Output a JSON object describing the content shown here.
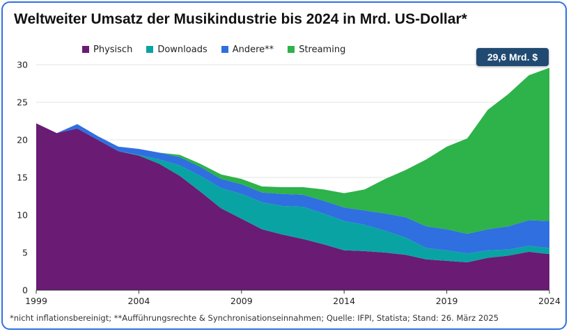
{
  "title": "Weltweiter Umsatz der Musikindustrie bis 2024 in Mrd. US-Dollar*",
  "footnote": "*nicht inflationsbereinigt; **Aufführungsrechte & Synchronisationseinnahmen; Quelle: IFPI, Statista; Stand: 26. März 2025",
  "callout": {
    "text": "29,6 Mrd. $",
    "color": "#214a72"
  },
  "chart_data": {
    "type": "area",
    "stacked": true,
    "title": "Weltweiter Umsatz der Musikindustrie bis 2024 in Mrd. US-Dollar*",
    "xlabel": "",
    "ylabel": "",
    "xlim": [
      1999,
      2024
    ],
    "ylim": [
      0,
      30
    ],
    "x": [
      1999,
      2000,
      2001,
      2002,
      2003,
      2004,
      2005,
      2006,
      2007,
      2008,
      2009,
      2010,
      2011,
      2012,
      2013,
      2014,
      2015,
      2016,
      2017,
      2018,
      2019,
      2020,
      2021,
      2022,
      2023,
      2024
    ],
    "x_ticks": [
      "1999",
      "2004",
      "2009",
      "2014",
      "2019",
      "2024"
    ],
    "y_ticks": [
      "0",
      "5",
      "10",
      "15",
      "20",
      "25",
      "30"
    ],
    "grid": true,
    "legend_position": "top",
    "series": [
      {
        "name": "Physisch",
        "color": "#6a1b73",
        "values": [
          22.2,
          20.9,
          21.5,
          20.0,
          18.5,
          17.9,
          16.8,
          15.2,
          13.1,
          10.9,
          9.5,
          8.1,
          7.4,
          6.8,
          6.1,
          5.3,
          5.2,
          5.0,
          4.7,
          4.1,
          3.9,
          3.7,
          4.3,
          4.6,
          5.1,
          4.8
        ]
      },
      {
        "name": "Downloads",
        "color": "#0aa3a3",
        "values": [
          0,
          0,
          0,
          0,
          0,
          0.1,
          0.6,
          1.4,
          2.1,
          2.7,
          3.3,
          3.6,
          3.8,
          4.3,
          4.1,
          3.9,
          3.5,
          2.9,
          2.3,
          1.5,
          1.4,
          1.2,
          1.0,
          0.8,
          0.8,
          0.8
        ]
      },
      {
        "name": "Andere**",
        "color": "#2f6fe0",
        "values": [
          0,
          0,
          0.6,
          0.5,
          0.6,
          0.8,
          0.9,
          1.1,
          1.2,
          1.2,
          1.3,
          1.3,
          1.6,
          1.6,
          1.7,
          1.8,
          1.9,
          2.3,
          2.7,
          2.9,
          2.8,
          2.6,
          2.8,
          3.1,
          3.4,
          3.6
        ]
      },
      {
        "name": "Streaming",
        "color": "#2eb24a",
        "values": [
          0,
          0,
          0,
          0,
          0,
          0,
          0,
          0.3,
          0.4,
          0.6,
          0.7,
          0.8,
          0.9,
          1.0,
          1.5,
          1.9,
          2.8,
          4.6,
          6.3,
          8.9,
          11.0,
          12.7,
          15.9,
          17.6,
          19.3,
          20.4
        ]
      }
    ]
  }
}
